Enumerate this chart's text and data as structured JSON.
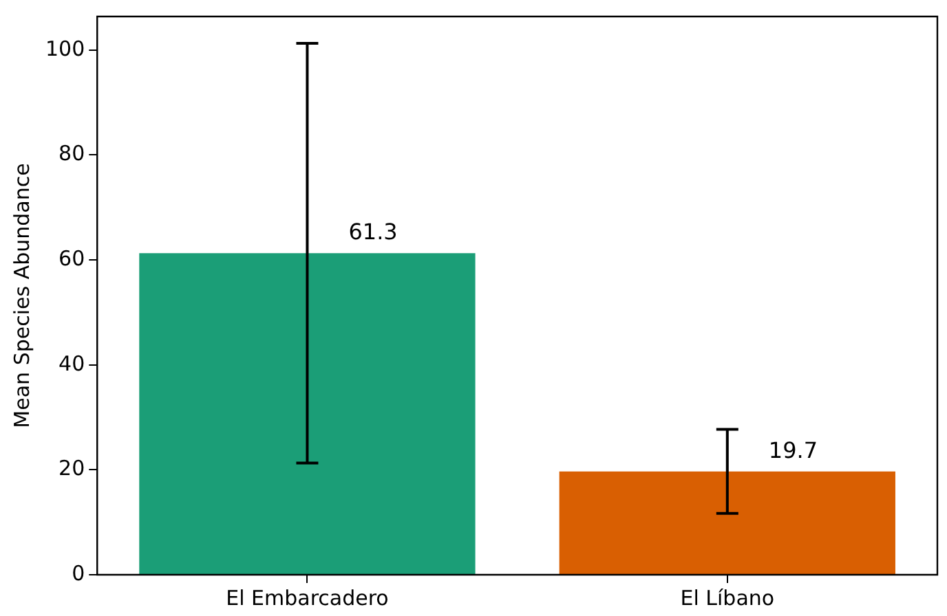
{
  "chart_data": {
    "type": "bar",
    "ylabel": "Mean Species Abundance",
    "categories": [
      "El Embarcadero",
      "El Líbano"
    ],
    "values": [
      61.3,
      19.7
    ],
    "colors": [
      "#1b9e77",
      "#d95f02"
    ],
    "errors": [
      40,
      8
    ],
    "ylim": [
      0,
      106.4
    ],
    "yticks": [
      0,
      20,
      40,
      60,
      80,
      100
    ],
    "data_labels": true,
    "grid": false,
    "legend": false
  }
}
